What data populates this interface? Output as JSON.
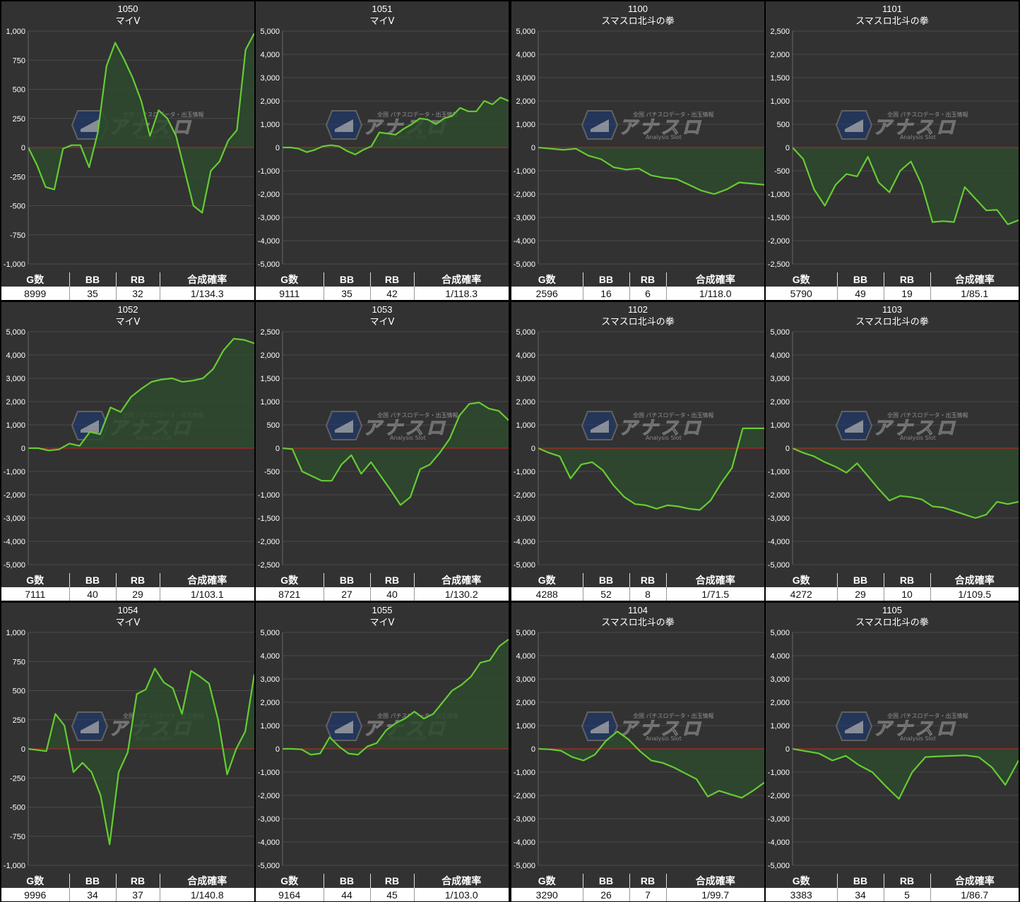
{
  "colors": {
    "line": "#66cc33",
    "fill": "#2d4a2d",
    "zero": "#cc2222",
    "grid": "#4a4a4a",
    "bg": "#323232",
    "text": "#ffffff"
  },
  "watermark": {
    "brand": "アナスロ",
    "tagline": "全国 パチスロデータ・出玉情報",
    "sub": "Analysis Slot"
  },
  "stat_headers": [
    "G数",
    "BB",
    "RB",
    "合成確率"
  ],
  "machines": [
    {
      "number": "1050",
      "model": "マイV",
      "chart_data": {
        "type": "area",
        "ylim": [
          -1000,
          1000
        ],
        "yticks": [
          "1,000",
          "750",
          "500",
          "250",
          "0",
          "-250",
          "-500",
          "-750",
          "-1,000"
        ],
        "values": [
          0,
          -150,
          -340,
          -360,
          -10,
          20,
          20,
          -170,
          130,
          700,
          900,
          760,
          600,
          400,
          100,
          320,
          250,
          100,
          -200,
          -500,
          -560,
          -200,
          -120,
          60,
          150,
          840,
          980
        ]
      },
      "stats": {
        "games": "8999",
        "bb": "35",
        "rb": "32",
        "rate": "1/134.3"
      }
    },
    {
      "number": "1051",
      "model": "マイV",
      "chart_data": {
        "type": "area",
        "ylim": [
          -5000,
          5000
        ],
        "yticks": [
          "5,000",
          "4,000",
          "3,000",
          "2,000",
          "1,000",
          "0",
          "-1,000",
          "-2,000",
          "-3,000",
          "-4,000",
          "-5,000"
        ],
        "values": [
          0,
          0,
          -50,
          -200,
          -100,
          50,
          100,
          50,
          -150,
          -300,
          -100,
          50,
          650,
          600,
          550,
          800,
          1000,
          1250,
          1200,
          1000,
          1250,
          1350,
          1700,
          1550,
          1550,
          2000,
          1850,
          2150,
          2000
        ]
      },
      "stats": {
        "games": "9111",
        "bb": "35",
        "rb": "42",
        "rate": "1/118.3"
      }
    },
    {
      "number": "1100",
      "model": "スマスロ北斗の拳",
      "chart_data": {
        "type": "area",
        "ylim": [
          -5000,
          5000
        ],
        "yticks": [
          "5,000",
          "4,000",
          "3,000",
          "2,000",
          "1,000",
          "0",
          "-1,000",
          "-2,000",
          "-3,000",
          "-4,000",
          "-5,000"
        ],
        "values": [
          0,
          -50,
          -100,
          -50,
          -350,
          -500,
          -850,
          -950,
          -900,
          -1200,
          -1300,
          -1350,
          -1600,
          -1850,
          -2000,
          -1800,
          -1500,
          -1550,
          -1600
        ]
      },
      "stats": {
        "games": "2596",
        "bb": "16",
        "rb": "6",
        "rate": "1/118.0"
      }
    },
    {
      "number": "1101",
      "model": "スマスロ北斗の拳",
      "chart_data": {
        "type": "area",
        "ylim": [
          -2500,
          2500
        ],
        "yticks": [
          "2,500",
          "2,000",
          "1,500",
          "1,000",
          "500",
          "0",
          "-500",
          "-1,000",
          "-1,500",
          "-2,000",
          "-2,500"
        ],
        "values": [
          0,
          -250,
          -900,
          -1250,
          -800,
          -570,
          -620,
          -200,
          -750,
          -960,
          -500,
          -300,
          -800,
          -1600,
          -1580,
          -1600,
          -850,
          -1100,
          -1350,
          -1340,
          -1650,
          -1560
        ]
      },
      "stats": {
        "games": "5790",
        "bb": "49",
        "rb": "19",
        "rate": "1/85.1"
      }
    },
    {
      "number": "1052",
      "model": "マイV",
      "chart_data": {
        "type": "area",
        "ylim": [
          -5000,
          5000
        ],
        "yticks": [
          "5,000",
          "4,000",
          "3,000",
          "2,000",
          "1,000",
          "0",
          "-1,000",
          "-2,000",
          "-3,000",
          "-4,000",
          "-5,000"
        ],
        "values": [
          0,
          0,
          -100,
          -50,
          200,
          100,
          700,
          600,
          1750,
          1550,
          2200,
          2550,
          2850,
          2950,
          3000,
          2850,
          2900,
          3000,
          3400,
          4200,
          4700,
          4650,
          4500
        ]
      },
      "stats": {
        "games": "7111",
        "bb": "40",
        "rb": "29",
        "rate": "1/103.1"
      }
    },
    {
      "number": "1053",
      "model": "マイV",
      "chart_data": {
        "type": "area",
        "ylim": [
          -2500,
          2500
        ],
        "yticks": [
          "2,500",
          "2,000",
          "1,500",
          "1,000",
          "500",
          "0",
          "-500",
          "-1,000",
          "-1,500",
          "-2,000",
          "-2,500"
        ],
        "values": [
          0,
          -20,
          -500,
          -600,
          -700,
          -700,
          -350,
          -150,
          -550,
          -300,
          -600,
          -900,
          -1220,
          -1050,
          -450,
          -350,
          -100,
          200,
          700,
          950,
          980,
          850,
          800,
          600
        ]
      },
      "stats": {
        "games": "8721",
        "bb": "27",
        "rb": "40",
        "rate": "1/130.2"
      }
    },
    {
      "number": "1102",
      "model": "スマスロ北斗の拳",
      "chart_data": {
        "type": "area",
        "ylim": [
          -5000,
          5000
        ],
        "yticks": [
          "5,000",
          "4,000",
          "3,000",
          "2,000",
          "1,000",
          "0",
          "-1,000",
          "-2,000",
          "-3,000",
          "-4,000",
          "-5,000"
        ],
        "values": [
          0,
          -200,
          -350,
          -1300,
          -700,
          -600,
          -950,
          -1600,
          -2100,
          -2400,
          -2450,
          -2600,
          -2450,
          -2500,
          -2600,
          -2650,
          -2250,
          -1500,
          -850,
          850,
          850,
          850
        ]
      },
      "stats": {
        "games": "4288",
        "bb": "52",
        "rb": "8",
        "rate": "1/71.5"
      }
    },
    {
      "number": "1103",
      "model": "スマスロ北斗の拳",
      "chart_data": {
        "type": "area",
        "ylim": [
          -5000,
          5000
        ],
        "yticks": [
          "5,000",
          "4,000",
          "3,000",
          "2,000",
          "1,000",
          "0",
          "-1,000",
          "-2,000",
          "-3,000",
          "-4,000",
          "-5,000"
        ],
        "values": [
          0,
          -200,
          -350,
          -600,
          -800,
          -1050,
          -650,
          -1200,
          -1750,
          -2250,
          -2050,
          -2100,
          -2200,
          -2500,
          -2550,
          -2700,
          -2850,
          -3000,
          -2850,
          -2300,
          -2400,
          -2300
        ]
      },
      "stats": {
        "games": "4272",
        "bb": "29",
        "rb": "10",
        "rate": "1/109.5"
      }
    },
    {
      "number": "1054",
      "model": "マイV",
      "chart_data": {
        "type": "area",
        "ylim": [
          -1000,
          1000
        ],
        "yticks": [
          "1,000",
          "750",
          "500",
          "250",
          "0",
          "-250",
          "-500",
          "-750",
          "-1,000"
        ],
        "values": [
          0,
          -10,
          -20,
          300,
          200,
          -200,
          -120,
          -200,
          -400,
          -820,
          -200,
          -30,
          470,
          510,
          690,
          570,
          520,
          300,
          670,
          620,
          560,
          250,
          -220,
          0,
          150,
          640
        ]
      },
      "stats": {
        "games": "9996",
        "bb": "34",
        "rb": "37",
        "rate": "1/140.8"
      }
    },
    {
      "number": "1055",
      "model": "マイV",
      "chart_data": {
        "type": "area",
        "ylim": [
          -5000,
          5000
        ],
        "yticks": [
          "5,000",
          "4,000",
          "3,000",
          "2,000",
          "1,000",
          "0",
          "-1,000",
          "-2,000",
          "-3,000",
          "-4,000",
          "-5,000"
        ],
        "values": [
          0,
          0,
          -20,
          -250,
          -200,
          500,
          100,
          -200,
          -250,
          100,
          250,
          800,
          1100,
          1300,
          1600,
          1300,
          1500,
          2000,
          2500,
          2750,
          3100,
          3700,
          3800,
          4400,
          4700
        ]
      },
      "stats": {
        "games": "9164",
        "bb": "44",
        "rb": "45",
        "rate": "1/103.0"
      }
    },
    {
      "number": "1104",
      "model": "スマスロ北斗の拳",
      "chart_data": {
        "type": "area",
        "ylim": [
          -5000,
          5000
        ],
        "yticks": [
          "5,000",
          "4,000",
          "3,000",
          "2,000",
          "1,000",
          "0",
          "-1,000",
          "-2,000",
          "-3,000",
          "-4,000",
          "-5,000"
        ],
        "values": [
          0,
          -20,
          -80,
          -350,
          -500,
          -250,
          350,
          750,
          400,
          -100,
          -500,
          -600,
          -800,
          -1050,
          -1300,
          -2050,
          -1800,
          -1950,
          -2100,
          -1800,
          -1450
        ]
      },
      "stats": {
        "games": "3290",
        "bb": "26",
        "rb": "7",
        "rate": "1/99.7"
      }
    },
    {
      "number": "1105",
      "model": "スマスロ北斗の拳",
      "chart_data": {
        "type": "area",
        "ylim": [
          -5000,
          5000
        ],
        "yticks": [
          "5,000",
          "4,000",
          "3,000",
          "2,000",
          "1,000",
          "0",
          "-1,000",
          "-2,000",
          "-3,000",
          "-4,000",
          "-5,000"
        ],
        "values": [
          0,
          -100,
          -200,
          -500,
          -300,
          -700,
          -1000,
          -1600,
          -2150,
          -1000,
          -350,
          -320,
          -300,
          -280,
          -350,
          -800,
          -1550,
          -500
        ]
      },
      "stats": {
        "games": "3383",
        "bb": "34",
        "rb": "5",
        "rate": "1/86.7"
      }
    }
  ]
}
